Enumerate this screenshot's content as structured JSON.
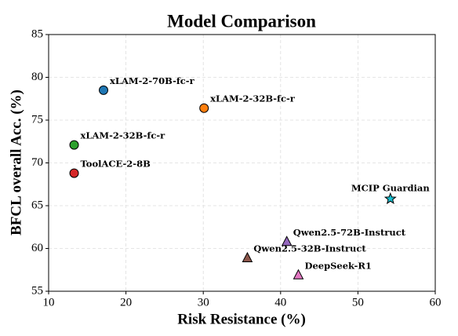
{
  "chart_data": {
    "type": "scatter",
    "title": "Model Comparison",
    "x_label": "Risk Resistance (%)",
    "y_label": "BFCL overall Acc. (%)",
    "xlim": [
      10,
      60
    ],
    "ylim": [
      55,
      85
    ],
    "xticks": [
      10,
      20,
      30,
      40,
      50,
      60
    ],
    "yticks": [
      55,
      60,
      65,
      70,
      75,
      80,
      85
    ],
    "grid": true,
    "series": [
      {
        "name": "xLAM-2-70B-fc-r",
        "color": "#1f77b4",
        "marker": "circle",
        "x": [
          17.1
        ],
        "values": [
          78.5
        ]
      },
      {
        "name": "xLAM-2-32B-fc-r",
        "color": "#ff7f0e",
        "marker": "circle",
        "x": [
          30.1
        ],
        "values": [
          76.4
        ]
      },
      {
        "name": "xLAM-2-32B-fc-r",
        "color": "#2ca02c",
        "marker": "circle",
        "x": [
          13.3
        ],
        "values": [
          72.1
        ]
      },
      {
        "name": "ToolACE-2-8B",
        "color": "#d62728",
        "marker": "circle",
        "x": [
          13.3
        ],
        "values": [
          68.8
        ]
      },
      {
        "name": "MCIP Guardian",
        "color": "#17becf",
        "marker": "star",
        "x": [
          54.2
        ],
        "values": [
          65.8
        ]
      },
      {
        "name": "Qwen2.5-72B-Instruct",
        "color": "#9467bd",
        "marker": "triangle",
        "x": [
          40.8
        ],
        "values": [
          60.8
        ]
      },
      {
        "name": "Qwen2.5-32B-Instruct",
        "color": "#8c564b",
        "marker": "triangle",
        "x": [
          35.7
        ],
        "values": [
          58.9
        ]
      },
      {
        "name": "DeepSeek-R1",
        "color": "#e377c2",
        "marker": "triangle",
        "x": [
          42.3
        ],
        "values": [
          56.9
        ]
      }
    ]
  }
}
